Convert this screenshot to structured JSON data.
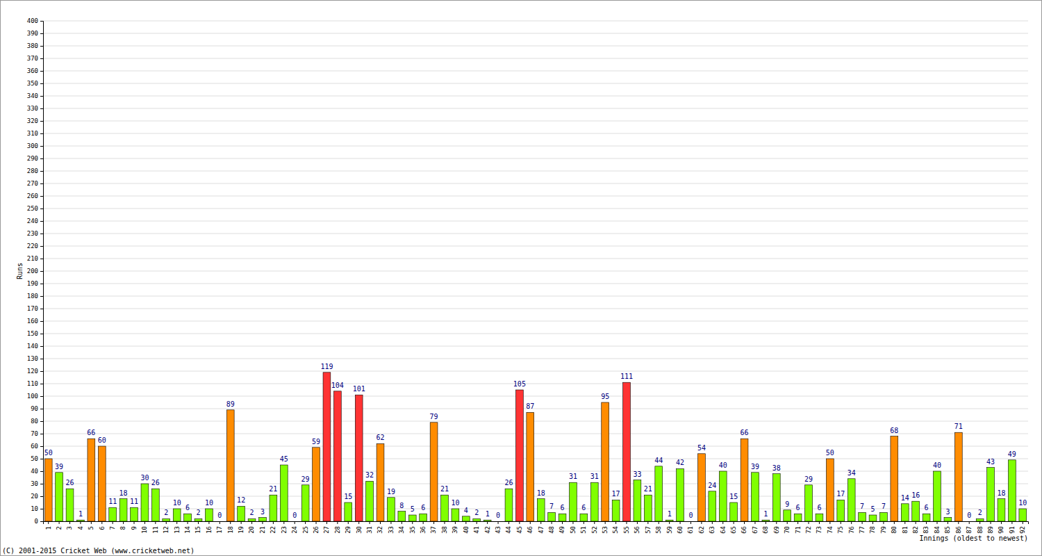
{
  "chart_data": {
    "type": "bar",
    "x_label": "Innings (oldest to newest)",
    "y_label": "Runs",
    "annotations": [
      "(C) 2001-2015 Cricket Web (www.cricketweb.net)"
    ],
    "categories": [
      "1",
      "2",
      "3",
      "4",
      "5",
      "6",
      "7",
      "8",
      "9",
      "10",
      "11",
      "12",
      "13",
      "14",
      "15",
      "16",
      "17",
      "18",
      "19",
      "20",
      "21",
      "22",
      "23",
      "24",
      "25",
      "26",
      "27",
      "28",
      "29",
      "30",
      "31",
      "32",
      "33",
      "34",
      "35",
      "36",
      "37",
      "38",
      "39",
      "40",
      "41",
      "42",
      "43",
      "44",
      "45",
      "46",
      "47",
      "48",
      "49",
      "50",
      "51",
      "52",
      "53",
      "54",
      "55",
      "56",
      "57",
      "58",
      "59",
      "60",
      "61",
      "62",
      "63",
      "64",
      "65",
      "66",
      "67",
      "68",
      "69",
      "70",
      "71",
      "72",
      "73",
      "74",
      "75",
      "76",
      "77",
      "78",
      "79",
      "80",
      "81",
      "82",
      "83",
      "84",
      "85",
      "86",
      "87",
      "88",
      "89",
      "90",
      "91",
      "92"
    ],
    "values": [
      50,
      39,
      26,
      1,
      66,
      60,
      11,
      18,
      11,
      30,
      26,
      2,
      10,
      6,
      2,
      10,
      0,
      89,
      12,
      2,
      3,
      21,
      45,
      0,
      29,
      59,
      119,
      104,
      15,
      101,
      32,
      62,
      19,
      8,
      5,
      6,
      79,
      21,
      10,
      4,
      2,
      1,
      0,
      26,
      105,
      87,
      18,
      7,
      6,
      31,
      6,
      31,
      95,
      17,
      111,
      33,
      21,
      44,
      1,
      42,
      0,
      54,
      24,
      40,
      15,
      66,
      39,
      1,
      38,
      9,
      6,
      29,
      6,
      50,
      17,
      34,
      7,
      5,
      7,
      68,
      14,
      16,
      6,
      40,
      3,
      71,
      0,
      2,
      43,
      18,
      49,
      10
    ],
    "colors": [
      "#ff8c00",
      "#80ff00",
      "#80ff00",
      "#80ff00",
      "#ff8c00",
      "#ff8c00",
      "#80ff00",
      "#80ff00",
      "#80ff00",
      "#80ff00",
      "#80ff00",
      "#80ff00",
      "#80ff00",
      "#80ff00",
      "#80ff00",
      "#80ff00",
      "#80ff00",
      "#ff8c00",
      "#80ff00",
      "#80ff00",
      "#80ff00",
      "#80ff00",
      "#80ff00",
      "#80ff00",
      "#80ff00",
      "#ff8c00",
      "#ff3333",
      "#ff3333",
      "#80ff00",
      "#ff3333",
      "#80ff00",
      "#ff8c00",
      "#80ff00",
      "#80ff00",
      "#80ff00",
      "#80ff00",
      "#ff8c00",
      "#80ff00",
      "#80ff00",
      "#80ff00",
      "#80ff00",
      "#80ff00",
      "#80ff00",
      "#80ff00",
      "#ff3333",
      "#ff8c00",
      "#80ff00",
      "#80ff00",
      "#80ff00",
      "#80ff00",
      "#80ff00",
      "#80ff00",
      "#ff8c00",
      "#80ff00",
      "#ff3333",
      "#80ff00",
      "#80ff00",
      "#80ff00",
      "#80ff00",
      "#80ff00",
      "#80ff00",
      "#ff8c00",
      "#80ff00",
      "#80ff00",
      "#80ff00",
      "#ff8c00",
      "#80ff00",
      "#80ff00",
      "#80ff00",
      "#80ff00",
      "#80ff00",
      "#80ff00",
      "#80ff00",
      "#ff8c00",
      "#80ff00",
      "#80ff00",
      "#80ff00",
      "#80ff00",
      "#80ff00",
      "#ff8c00",
      "#80ff00",
      "#80ff00",
      "#80ff00",
      "#80ff00",
      "#80ff00",
      "#ff8c00",
      "#80ff00",
      "#80ff00",
      "#80ff00",
      "#80ff00",
      "#80ff00",
      "#80ff00"
    ],
    "ylim": [
      0,
      400
    ],
    "yticks": [
      0,
      10,
      20,
      30,
      40,
      50,
      60,
      70,
      80,
      90,
      100,
      110,
      120,
      130,
      140,
      150,
      160,
      170,
      180,
      190,
      200,
      210,
      220,
      230,
      240,
      250,
      260,
      270,
      280,
      290,
      300,
      310,
      320,
      330,
      340,
      350,
      360,
      370,
      380,
      390,
      400
    ],
    "grid": true,
    "data_labels": true
  }
}
